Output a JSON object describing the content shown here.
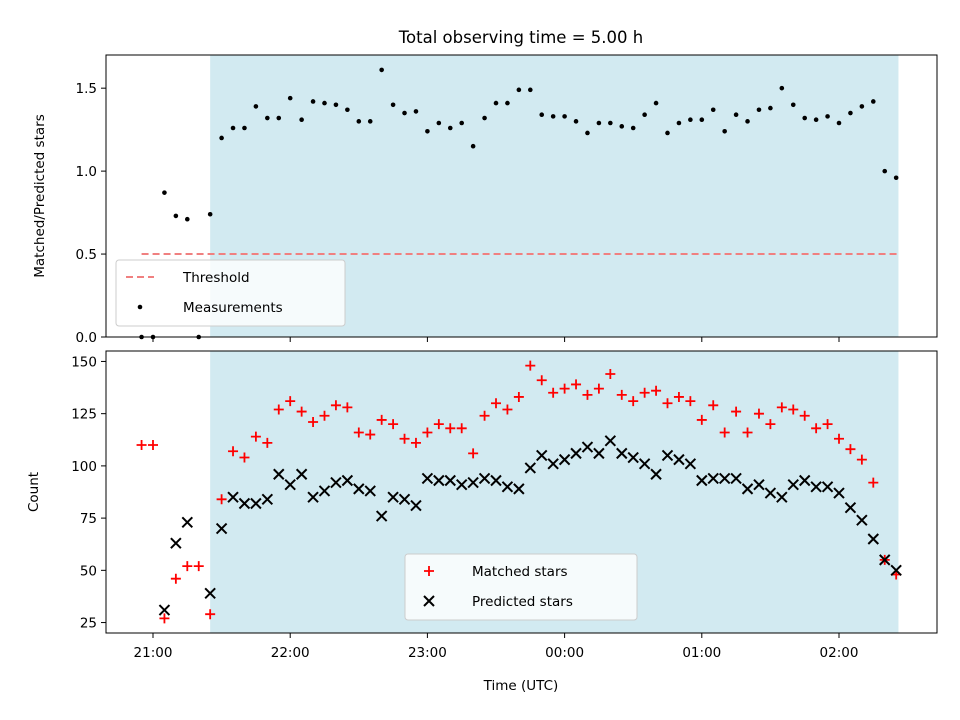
{
  "chart_data": {
    "title": "Total observing time = 5.00 h",
    "xlabel": "Time (UTC)",
    "x_ticks": [
      "21:00",
      "22:00",
      "23:00",
      "00:00",
      "01:00",
      "02:00"
    ],
    "observing_window": {
      "start": "21:25",
      "end": "02:26",
      "color": "#add8e6"
    },
    "panels": [
      {
        "type": "scatter",
        "ylabel": "Matched/Predicted stars",
        "ylim": [
          0,
          1.7
        ],
        "y_ticks": [
          0.0,
          0.5,
          1.0,
          1.5
        ],
        "legend_position": "lower-left",
        "series": [
          {
            "name": "Threshold",
            "kind": "hline",
            "value": 0.5,
            "from": "20:55",
            "to": "02:26",
            "color": "#f08080",
            "style": "dashed"
          },
          {
            "name": "Measurements",
            "marker": "dot",
            "color": "#000000",
            "points": [
              [
                "20:55",
                0.0
              ],
              [
                "21:00",
                0.0
              ],
              [
                "21:05",
                0.87
              ],
              [
                "21:10",
                0.73
              ],
              [
                "21:15",
                0.71
              ],
              [
                "21:20",
                0.0
              ],
              [
                "21:25",
                0.74
              ],
              [
                "21:30",
                1.2
              ],
              [
                "21:35",
                1.26
              ],
              [
                "21:40",
                1.26
              ],
              [
                "21:45",
                1.39
              ],
              [
                "21:50",
                1.32
              ],
              [
                "21:55",
                1.32
              ],
              [
                "22:00",
                1.44
              ],
              [
                "22:05",
                1.31
              ],
              [
                "22:10",
                1.42
              ],
              [
                "22:15",
                1.41
              ],
              [
                "22:20",
                1.4
              ],
              [
                "22:25",
                1.37
              ],
              [
                "22:30",
                1.3
              ],
              [
                "22:35",
                1.3
              ],
              [
                "22:40",
                1.61
              ],
              [
                "22:45",
                1.4
              ],
              [
                "22:50",
                1.35
              ],
              [
                "22:55",
                1.36
              ],
              [
                "23:00",
                1.24
              ],
              [
                "23:05",
                1.29
              ],
              [
                "23:10",
                1.26
              ],
              [
                "23:15",
                1.29
              ],
              [
                "23:20",
                1.15
              ],
              [
                "23:25",
                1.32
              ],
              [
                "23:30",
                1.41
              ],
              [
                "23:35",
                1.41
              ],
              [
                "23:40",
                1.49
              ],
              [
                "23:45",
                1.49
              ],
              [
                "23:50",
                1.34
              ],
              [
                "23:55",
                1.33
              ],
              [
                "00:00",
                1.33
              ],
              [
                "00:05",
                1.3
              ],
              [
                "00:10",
                1.23
              ],
              [
                "00:15",
                1.29
              ],
              [
                "00:20",
                1.29
              ],
              [
                "00:25",
                1.27
              ],
              [
                "00:30",
                1.26
              ],
              [
                "00:35",
                1.34
              ],
              [
                "00:40",
                1.41
              ],
              [
                "00:45",
                1.23
              ],
              [
                "00:50",
                1.29
              ],
              [
                "00:55",
                1.31
              ],
              [
                "01:00",
                1.31
              ],
              [
                "01:05",
                1.37
              ],
              [
                "01:10",
                1.24
              ],
              [
                "01:15",
                1.34
              ],
              [
                "01:20",
                1.3
              ],
              [
                "01:25",
                1.37
              ],
              [
                "01:30",
                1.38
              ],
              [
                "01:35",
                1.5
              ],
              [
                "01:40",
                1.4
              ],
              [
                "01:45",
                1.32
              ],
              [
                "01:50",
                1.31
              ],
              [
                "01:55",
                1.33
              ],
              [
                "02:00",
                1.29
              ],
              [
                "02:05",
                1.35
              ],
              [
                "02:10",
                1.39
              ],
              [
                "02:15",
                1.42
              ],
              [
                "02:20",
                1.0
              ],
              [
                "02:25",
                0.96
              ]
            ]
          }
        ]
      },
      {
        "type": "scatter",
        "ylabel": "Count",
        "ylim": [
          20,
          155
        ],
        "y_ticks": [
          25,
          50,
          75,
          100,
          125,
          150
        ],
        "legend_position": "lower-center",
        "series": [
          {
            "name": "Matched stars",
            "marker": "plus",
            "color": "#ff0000",
            "points": [
              [
                "20:55",
                110
              ],
              [
                "21:00",
                110
              ],
              [
                "21:05",
                27
              ],
              [
                "21:10",
                46
              ],
              [
                "21:15",
                52
              ],
              [
                "21:20",
                52
              ],
              [
                "21:25",
                29
              ],
              [
                "21:30",
                84
              ],
              [
                "21:35",
                107
              ],
              [
                "21:40",
                104
              ],
              [
                "21:45",
                114
              ],
              [
                "21:50",
                111
              ],
              [
                "21:55",
                127
              ],
              [
                "22:00",
                131
              ],
              [
                "22:05",
                126
              ],
              [
                "22:10",
                121
              ],
              [
                "22:15",
                124
              ],
              [
                "22:20",
                129
              ],
              [
                "22:25",
                128
              ],
              [
                "22:30",
                116
              ],
              [
                "22:35",
                115
              ],
              [
                "22:40",
                122
              ],
              [
                "22:45",
                120
              ],
              [
                "22:50",
                113
              ],
              [
                "22:55",
                111
              ],
              [
                "23:00",
                116
              ],
              [
                "23:05",
                120
              ],
              [
                "23:10",
                118
              ],
              [
                "23:15",
                118
              ],
              [
                "23:20",
                106
              ],
              [
                "23:25",
                124
              ],
              [
                "23:30",
                130
              ],
              [
                "23:35",
                127
              ],
              [
                "23:40",
                133
              ],
              [
                "23:45",
                148
              ],
              [
                "23:50",
                141
              ],
              [
                "23:55",
                135
              ],
              [
                "00:00",
                137
              ],
              [
                "00:05",
                139
              ],
              [
                "00:10",
                134
              ],
              [
                "00:15",
                137
              ],
              [
                "00:20",
                144
              ],
              [
                "00:25",
                134
              ],
              [
                "00:30",
                131
              ],
              [
                "00:35",
                135
              ],
              [
                "00:40",
                136
              ],
              [
                "00:45",
                130
              ],
              [
                "00:50",
                133
              ],
              [
                "00:55",
                131
              ],
              [
                "01:00",
                122
              ],
              [
                "01:05",
                129
              ],
              [
                "01:10",
                116
              ],
              [
                "01:15",
                126
              ],
              [
                "01:20",
                116
              ],
              [
                "01:25",
                125
              ],
              [
                "01:30",
                120
              ],
              [
                "01:35",
                128
              ],
              [
                "01:40",
                127
              ],
              [
                "01:45",
                124
              ],
              [
                "01:50",
                118
              ],
              [
                "01:55",
                120
              ],
              [
                "02:00",
                113
              ],
              [
                "02:05",
                108
              ],
              [
                "02:10",
                103
              ],
              [
                "02:15",
                92
              ],
              [
                "02:20",
                55
              ],
              [
                "02:25",
                48
              ]
            ]
          },
          {
            "name": "Predicted stars",
            "marker": "x",
            "color": "#000000",
            "points": [
              [
                "21:05",
                31
              ],
              [
                "21:10",
                63
              ],
              [
                "21:15",
                73
              ],
              [
                "21:25",
                39
              ],
              [
                "21:30",
                70
              ],
              [
                "21:35",
                85
              ],
              [
                "21:40",
                82
              ],
              [
                "21:45",
                82
              ],
              [
                "21:50",
                84
              ],
              [
                "21:55",
                96
              ],
              [
                "22:00",
                91
              ],
              [
                "22:05",
                96
              ],
              [
                "22:10",
                85
              ],
              [
                "22:15",
                88
              ],
              [
                "22:20",
                92
              ],
              [
                "22:25",
                93
              ],
              [
                "22:30",
                89
              ],
              [
                "22:35",
                88
              ],
              [
                "22:40",
                76
              ],
              [
                "22:45",
                85
              ],
              [
                "22:50",
                84
              ],
              [
                "22:55",
                81
              ],
              [
                "23:00",
                94
              ],
              [
                "23:05",
                93
              ],
              [
                "23:10",
                93
              ],
              [
                "23:15",
                91
              ],
              [
                "23:20",
                92
              ],
              [
                "23:25",
                94
              ],
              [
                "23:30",
                93
              ],
              [
                "23:35",
                90
              ],
              [
                "23:40",
                89
              ],
              [
                "23:45",
                99
              ],
              [
                "23:50",
                105
              ],
              [
                "23:55",
                101
              ],
              [
                "00:00",
                103
              ],
              [
                "00:05",
                106
              ],
              [
                "00:10",
                109
              ],
              [
                "00:15",
                106
              ],
              [
                "00:20",
                112
              ],
              [
                "00:25",
                106
              ],
              [
                "00:30",
                104
              ],
              [
                "00:35",
                101
              ],
              [
                "00:40",
                96
              ],
              [
                "00:45",
                105
              ],
              [
                "00:50",
                103
              ],
              [
                "00:55",
                101
              ],
              [
                "01:00",
                93
              ],
              [
                "01:05",
                94
              ],
              [
                "01:10",
                94
              ],
              [
                "01:15",
                94
              ],
              [
                "01:20",
                89
              ],
              [
                "01:25",
                91
              ],
              [
                "01:30",
                87
              ],
              [
                "01:35",
                85
              ],
              [
                "01:40",
                91
              ],
              [
                "01:45",
                93
              ],
              [
                "01:50",
                90
              ],
              [
                "01:55",
                90
              ],
              [
                "02:00",
                87
              ],
              [
                "02:05",
                80
              ],
              [
                "02:10",
                74
              ],
              [
                "02:15",
                65
              ],
              [
                "02:20",
                55
              ],
              [
                "02:25",
                50
              ]
            ]
          }
        ]
      }
    ]
  }
}
